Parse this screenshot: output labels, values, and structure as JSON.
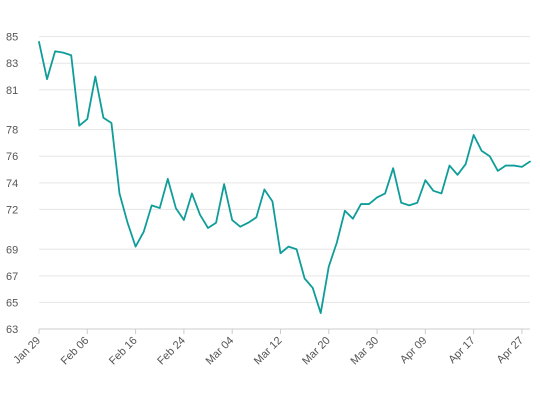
{
  "chart_data": {
    "type": "line",
    "title": "",
    "xlabel": "",
    "ylabel": "",
    "grid": "horizontal",
    "legend": "none",
    "line_color": "#0f9d9a",
    "grid_color": "#e6e6e6",
    "axis_color": "#cccccc",
    "label_color": "#555555",
    "y_ticks": [
      63,
      65,
      67,
      69,
      72,
      74,
      76,
      78,
      81,
      83,
      85
    ],
    "ylim": [
      63,
      85.5
    ],
    "x_ticks": [
      {
        "label": "Jan 29",
        "index": 0
      },
      {
        "label": "Feb 06",
        "index": 6
      },
      {
        "label": "Feb 16",
        "index": 12
      },
      {
        "label": "Feb 24",
        "index": 18
      },
      {
        "label": "Mar 04",
        "index": 24
      },
      {
        "label": "Mar 12",
        "index": 30
      },
      {
        "label": "Mar 20",
        "index": 36
      },
      {
        "label": "Mar 30",
        "index": 42
      },
      {
        "label": "Apr 09",
        "index": 48
      },
      {
        "label": "Apr 17",
        "index": 54
      },
      {
        "label": "Apr 27",
        "index": 60
      }
    ],
    "series": [
      {
        "values": [
          84.6,
          81.8,
          83.9,
          83.8,
          83.6,
          78.3,
          78.8,
          82.0,
          78.9,
          78.5,
          73.2,
          71.0,
          69.2,
          70.3,
          72.3,
          72.1,
          74.3,
          72.1,
          71.2,
          73.2,
          71.6,
          70.6,
          71.0,
          73.9,
          71.2,
          70.7,
          71.0,
          71.4,
          73.5,
          72.6,
          68.7,
          69.2,
          69.0,
          66.8,
          66.1,
          64.2,
          67.7,
          69.5,
          71.9,
          71.3,
          72.4,
          72.4,
          72.9,
          73.2,
          75.1,
          72.5,
          72.3,
          72.5,
          74.2,
          73.4,
          73.2,
          75.3,
          74.6,
          75.4,
          77.6,
          76.4,
          76.0,
          74.9,
          75.3,
          75.3,
          75.2,
          75.6
        ]
      }
    ]
  }
}
